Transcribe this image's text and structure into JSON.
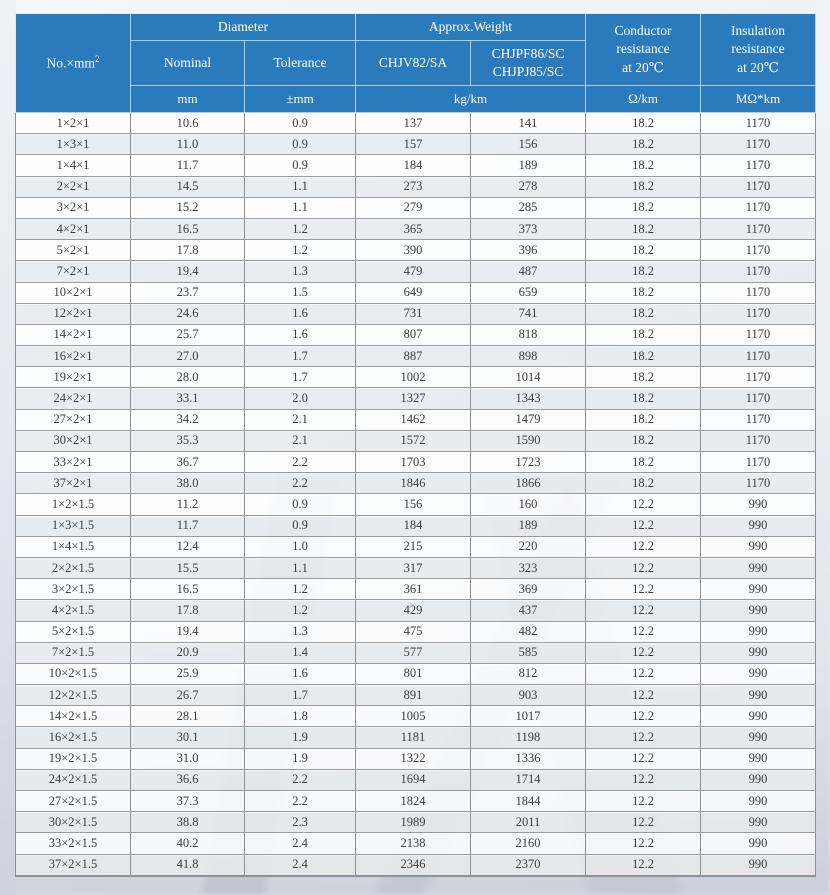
{
  "colors": {
    "header_blue": "#2a7abc",
    "header_divider": "#dcebf8",
    "body_border": "#8f8f8f",
    "row_alt_bg": "#e9ebed",
    "body_text": "#3c3c3c",
    "header_text": "#ffffff"
  },
  "table": {
    "header": {
      "no_label": "No.×mm",
      "no_label_sup": "2",
      "diameter": "Diameter",
      "approx_weight": "Approx.Weight",
      "nominal": "Nominal",
      "tolerance": "Tolerance",
      "chjv": "CHJV82/SA",
      "chjpf": "CHJPF86/SC\nCHJPJ85/SC",
      "conductor": "Conductor\nresistance\nat 20℃",
      "insulation": "Insulation\nresistance\nat 20℃",
      "unit_mm": "mm",
      "unit_tolerance": "±mm",
      "unit_weight": "kg/km",
      "unit_conductor": "Ω/km",
      "unit_insulation": "MΩ*km"
    },
    "columns": [
      "No.×mm2",
      "Nominal (mm)",
      "Tolerance (±mm)",
      "CHJV82/SA (kg/km)",
      "CHJPF86/SC CHJPJ85/SC (kg/km)",
      "Conductor resistance at 20℃ (Ω/km)",
      "Insulation resistance at 20℃ (MΩ*km)"
    ],
    "rows": [
      [
        "1×2×1",
        "10.6",
        "0.9",
        "137",
        "141",
        "18.2",
        "1170"
      ],
      [
        "1×3×1",
        "11.0",
        "0.9",
        "157",
        "156",
        "18.2",
        "1170"
      ],
      [
        "1×4×1",
        "11.7",
        "0.9",
        "184",
        "189",
        "18.2",
        "1170"
      ],
      [
        "2×2×1",
        "14.5",
        "1.1",
        "273",
        "278",
        "18.2",
        "1170"
      ],
      [
        "3×2×1",
        "15.2",
        "1.1",
        "279",
        "285",
        "18.2",
        "1170"
      ],
      [
        "4×2×1",
        "16.5",
        "1.2",
        "365",
        "373",
        "18.2",
        "1170"
      ],
      [
        "5×2×1",
        "17.8",
        "1.2",
        "390",
        "396",
        "18.2",
        "1170"
      ],
      [
        "7×2×1",
        "19.4",
        "1.3",
        "479",
        "487",
        "18.2",
        "1170"
      ],
      [
        "10×2×1",
        "23.7",
        "1.5",
        "649",
        "659",
        "18.2",
        "1170"
      ],
      [
        "12×2×1",
        "24.6",
        "1.6",
        "731",
        "741",
        "18.2",
        "1170"
      ],
      [
        "14×2×1",
        "25.7",
        "1.6",
        "807",
        "818",
        "18.2",
        "1170"
      ],
      [
        "16×2×1",
        "27.0",
        "1.7",
        "887",
        "898",
        "18.2",
        "1170"
      ],
      [
        "19×2×1",
        "28.0",
        "1.7",
        "1002",
        "1014",
        "18.2",
        "1170"
      ],
      [
        "24×2×1",
        "33.1",
        "2.0",
        "1327",
        "1343",
        "18.2",
        "1170"
      ],
      [
        "27×2×1",
        "34.2",
        "2.1",
        "1462",
        "1479",
        "18.2",
        "1170"
      ],
      [
        "30×2×1",
        "35.3",
        "2.1",
        "1572",
        "1590",
        "18.2",
        "1170"
      ],
      [
        "33×2×1",
        "36.7",
        "2.2",
        "1703",
        "1723",
        "18.2",
        "1170"
      ],
      [
        "37×2×1",
        "38.0",
        "2.2",
        "1846",
        "1866",
        "18.2",
        "1170"
      ],
      [
        "1×2×1.5",
        "11.2",
        "0.9",
        "156",
        "160",
        "12.2",
        "990"
      ],
      [
        "1×3×1.5",
        "11.7",
        "0.9",
        "184",
        "189",
        "12.2",
        "990"
      ],
      [
        "1×4×1.5",
        "12.4",
        "1.0",
        "215",
        "220",
        "12.2",
        "990"
      ],
      [
        "2×2×1.5",
        "15.5",
        "1.1",
        "317",
        "323",
        "12.2",
        "990"
      ],
      [
        "3×2×1.5",
        "16.5",
        "1.2",
        "361",
        "369",
        "12.2",
        "990"
      ],
      [
        "4×2×1.5",
        "17.8",
        "1.2",
        "429",
        "437",
        "12.2",
        "990"
      ],
      [
        "5×2×1.5",
        "19.4",
        "1.3",
        "475",
        "482",
        "12.2",
        "990"
      ],
      [
        "7×2×1.5",
        "20.9",
        "1.4",
        "577",
        "585",
        "12.2",
        "990"
      ],
      [
        "10×2×1.5",
        "25.9",
        "1.6",
        "801",
        "812",
        "12.2",
        "990"
      ],
      [
        "12×2×1.5",
        "26.7",
        "1.7",
        "891",
        "903",
        "12.2",
        "990"
      ],
      [
        "14×2×1.5",
        "28.1",
        "1.8",
        "1005",
        "1017",
        "12.2",
        "990"
      ],
      [
        "16×2×1.5",
        "30.1",
        "1.9",
        "1181",
        "1198",
        "12.2",
        "990"
      ],
      [
        "19×2×1.5",
        "31.0",
        "1.9",
        "1322",
        "1336",
        "12.2",
        "990"
      ],
      [
        "24×2×1.5",
        "36.6",
        "2.2",
        "1694",
        "1714",
        "12.2",
        "990"
      ],
      [
        "27×2×1.5",
        "37.3",
        "2.2",
        "1824",
        "1844",
        "12.2",
        "990"
      ],
      [
        "30×2×1.5",
        "38.8",
        "2.3",
        "1989",
        "2011",
        "12.2",
        "990"
      ],
      [
        "33×2×1.5",
        "40.2",
        "2.4",
        "2138",
        "2160",
        "12.2",
        "990"
      ],
      [
        "37×2×1.5",
        "41.8",
        "2.4",
        "2346",
        "2370",
        "12.2",
        "990"
      ]
    ]
  }
}
